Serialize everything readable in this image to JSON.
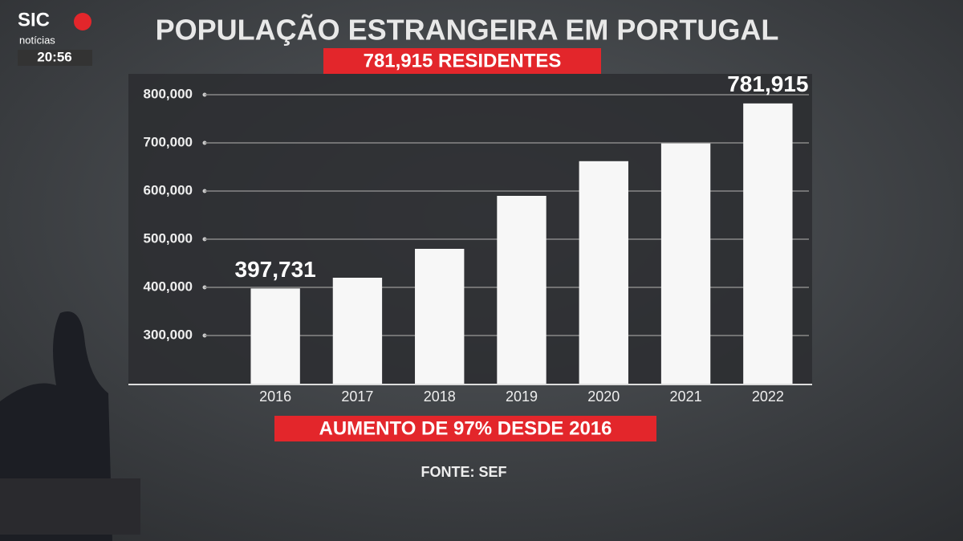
{
  "broadcast": {
    "channel": "SIC",
    "subchannel": "notícias",
    "time": "20:56"
  },
  "chart_data": {
    "type": "bar",
    "title": "POPULAÇÃO ESTRANGEIRA EM PORTUGAL",
    "subtitle": "781,915 RESIDENTES",
    "annotation": "AUMENTO DE 97% DESDE 2016",
    "source": "FONTE: SEF",
    "categories": [
      "2016",
      "2017",
      "2018",
      "2019",
      "2020",
      "2021",
      "2022"
    ],
    "values": [
      397731,
      420000,
      480000,
      590000,
      662000,
      699000,
      781915
    ],
    "value_labels": [
      "397,731",
      null,
      null,
      null,
      null,
      null,
      "781,915"
    ],
    "color": "#f7f7f7",
    "ylim": [
      200000,
      800000
    ],
    "yticks": [
      {
        "value": 300000,
        "label": "300,000"
      },
      {
        "value": 400000,
        "label": "400,000"
      },
      {
        "value": 500000,
        "label": "500,000"
      },
      {
        "value": 600000,
        "label": "600,000"
      },
      {
        "value": 700000,
        "label": "700,000"
      },
      {
        "value": 800000,
        "label": "800,000"
      }
    ],
    "grid": true
  }
}
